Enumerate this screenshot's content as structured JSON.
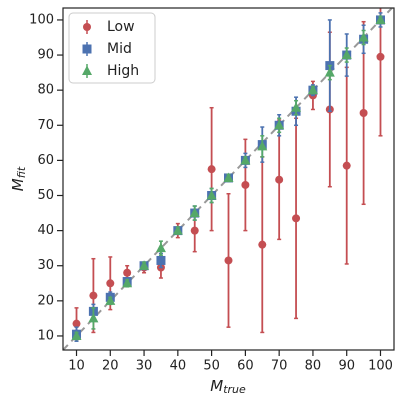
{
  "chart_data": {
    "type": "errorbar",
    "xlabel": {
      "main": "M",
      "subscript": "true"
    },
    "ylabel": {
      "main": "M",
      "subscript": "fit"
    },
    "x": [
      10,
      15,
      20,
      25,
      30,
      35,
      40,
      45,
      50,
      55,
      60,
      65,
      70,
      75,
      80,
      85,
      90,
      95,
      100
    ],
    "series": [
      {
        "name": "Low",
        "color": "#c44e52",
        "marker": "circle",
        "values": [
          13.5,
          21.5,
          25,
          28,
          29.5,
          29.5,
          40,
          40,
          57.5,
          31.5,
          53,
          36,
          54.5,
          43.5,
          78.5,
          74.5,
          58.5,
          73.5,
          89.5
        ],
        "errors": [
          4.5,
          10.5,
          7.5,
          2,
          1.5,
          3,
          2,
          6,
          17.5,
          19,
          13,
          25,
          17,
          28.5,
          4,
          22,
          28,
          26,
          22.5
        ]
      },
      {
        "name": "Mid",
        "color": "#4c72b0",
        "marker": "square",
        "values": [
          10.5,
          17,
          21,
          25.5,
          30,
          31.5,
          40,
          45,
          50,
          55,
          60,
          64.5,
          70,
          74,
          80,
          87,
          90,
          94.5,
          100
        ],
        "errors": [
          2,
          2,
          1.5,
          1,
          1,
          2,
          1,
          2,
          2,
          1,
          2,
          5,
          3,
          4,
          1.5,
          13,
          6,
          4,
          2
        ]
      },
      {
        "name": "High",
        "color": "#55a868",
        "marker": "triangle",
        "values": [
          10,
          15,
          20,
          25,
          30,
          35,
          40,
          45,
          50,
          55,
          60,
          64,
          70,
          75,
          80,
          85,
          90,
          95,
          100
        ],
        "errors": [
          1,
          3,
          1,
          1,
          1,
          2,
          1,
          2,
          2,
          1,
          1,
          3,
          2,
          2,
          1,
          2,
          2,
          2,
          1
        ]
      }
    ],
    "xlim": [
      6,
      104
    ],
    "ylim": [
      6,
      103.4
    ],
    "xticks": [
      10,
      20,
      30,
      40,
      50,
      60,
      70,
      80,
      90,
      100
    ],
    "yticks": [
      10,
      20,
      30,
      40,
      50,
      60,
      70,
      80,
      90,
      100
    ],
    "identity_line": true,
    "legend": "upper left"
  }
}
